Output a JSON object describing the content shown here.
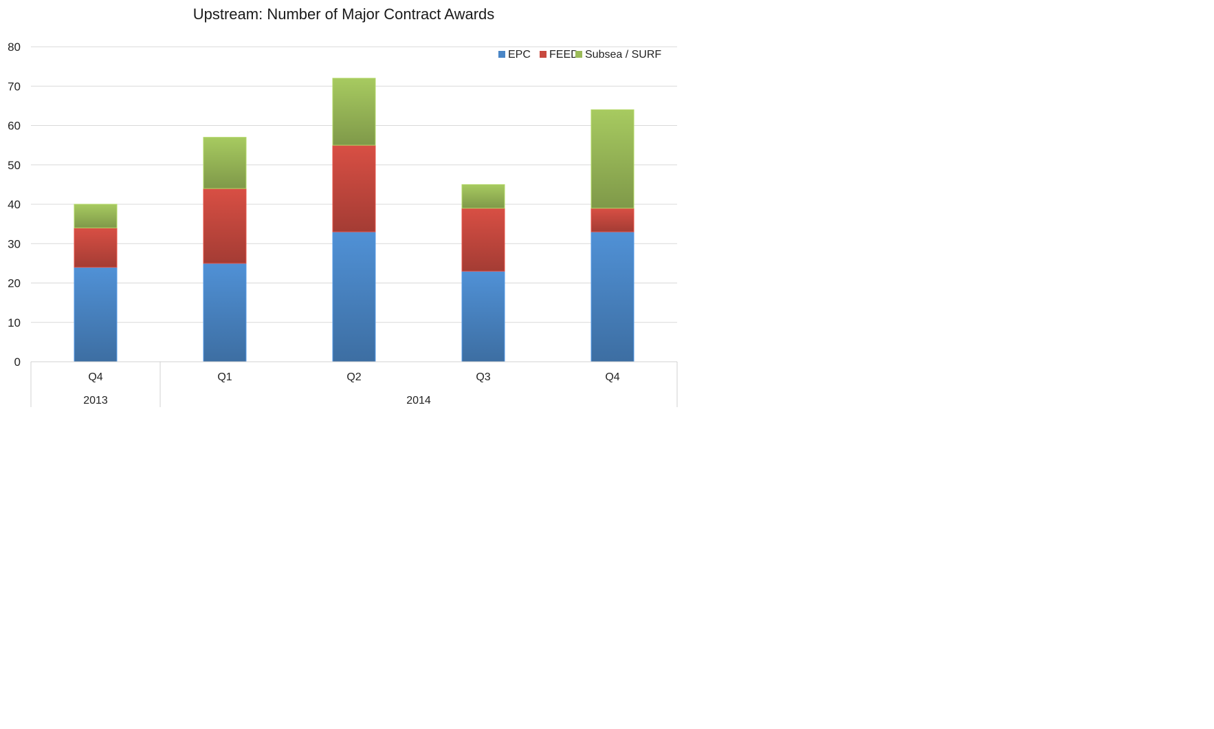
{
  "chart_data": {
    "type": "bar",
    "stacked": true,
    "title": "Upstream: Number of Major Contract Awards",
    "xlabel": "",
    "ylabel": "",
    "ylim": [
      0,
      80
    ],
    "yticks": [
      "0",
      "10",
      "20",
      "30",
      "40",
      "50",
      "60",
      "70",
      "80"
    ],
    "grid": true,
    "legend_position": "top-right",
    "categories": [
      "Q4",
      "Q1",
      "Q2",
      "Q3",
      "Q4"
    ],
    "category_groups": [
      {
        "label": "2013",
        "count": 1
      },
      {
        "label": "2014",
        "count": 4
      }
    ],
    "series": [
      {
        "name": "EPC",
        "color": "#4a86c6",
        "values": [
          24,
          25,
          33,
          23,
          33
        ]
      },
      {
        "name": "FEED",
        "color": "#c8493f",
        "values": [
          10,
          19,
          22,
          16,
          6
        ]
      },
      {
        "name": "Subsea / SURF",
        "color": "#9bbb59",
        "values": [
          6,
          13,
          17,
          6,
          25
        ]
      }
    ]
  }
}
